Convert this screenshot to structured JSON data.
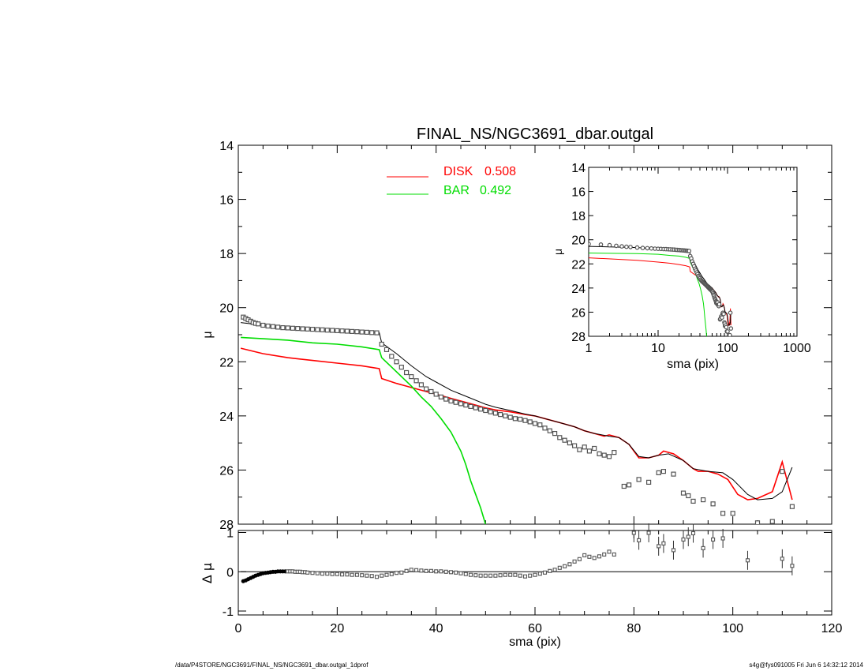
{
  "footer": {
    "path": "/data/P4STORE/NGC3691/FINAL_NS/NGC3691_dbar.outgal_1dprof",
    "stamp": "s4g@fys091005  Fri Jun  6 14:32:12 2014"
  },
  "colors": {
    "disk": "#ff0000",
    "bar": "#00dd00",
    "data": "#555555",
    "model": "#000000"
  },
  "chart_data": [
    {
      "type": "line",
      "title": "FINAL_NS/NGC3691_dbar.outgal",
      "xlabel": "sma (pix)",
      "ylabel": "μ",
      "xlim": [
        0,
        120
      ],
      "ylim": [
        14,
        28
      ],
      "y_inverted": true,
      "xticks": [
        0,
        20,
        40,
        60,
        80,
        100,
        120
      ],
      "yticks": [
        14,
        16,
        18,
        20,
        22,
        24,
        26,
        28
      ],
      "legend": [
        {
          "label": "DISK",
          "value": "0.508",
          "color": "#ff0000"
        },
        {
          "label": "BAR",
          "value": "0.492",
          "color": "#00dd00"
        }
      ],
      "series": [
        {
          "name": "DISK",
          "color": "#ff0000",
          "x": [
            0.5,
            5,
            10,
            15,
            20,
            25,
            28.5,
            29,
            32,
            35,
            38,
            40,
            43,
            45,
            48,
            50,
            52,
            55,
            58,
            60,
            62,
            65,
            68,
            70,
            72,
            74,
            75,
            77,
            79,
            81,
            83,
            85,
            86,
            88,
            90,
            92,
            93,
            95,
            97,
            99,
            101,
            103,
            105,
            108,
            110,
            112
          ],
          "y": [
            21.5,
            21.7,
            21.85,
            21.95,
            22.05,
            22.15,
            22.25,
            22.62,
            22.8,
            22.95,
            23.1,
            23.2,
            23.35,
            23.45,
            23.6,
            23.7,
            23.78,
            23.85,
            23.95,
            24.0,
            24.1,
            24.25,
            24.4,
            24.55,
            24.65,
            24.75,
            24.7,
            24.8,
            25.05,
            25.55,
            25.55,
            25.45,
            25.3,
            25.4,
            25.65,
            25.95,
            26.05,
            26.05,
            26.15,
            26.35,
            26.9,
            27.1,
            27.05,
            26.8,
            25.7,
            27.1
          ]
        },
        {
          "name": "BAR",
          "color": "#00dd00",
          "x": [
            0.5,
            5,
            10,
            15,
            20,
            25,
            28.5,
            29,
            31,
            33,
            35,
            37,
            39,
            41,
            43,
            45,
            46,
            47,
            48,
            49,
            50
          ],
          "y": [
            21.1,
            21.15,
            21.2,
            21.3,
            21.35,
            21.45,
            21.55,
            21.85,
            22.2,
            22.55,
            22.9,
            23.3,
            23.65,
            24.1,
            24.6,
            25.3,
            25.8,
            26.4,
            26.9,
            27.4,
            28.0
          ]
        },
        {
          "name": "model",
          "color": "#000000",
          "x": [
            0.5,
            5,
            10,
            15,
            20,
            25,
            28.5,
            29,
            32,
            35,
            38,
            40,
            43,
            45,
            48,
            50,
            52,
            55,
            58,
            60,
            62,
            65,
            68,
            70,
            72,
            75,
            77,
            79,
            81,
            83,
            85,
            87,
            90,
            92,
            95,
            98,
            100,
            103,
            105,
            108,
            110,
            112
          ],
          "y": [
            20.55,
            20.65,
            20.75,
            20.8,
            20.85,
            20.9,
            20.92,
            21.3,
            21.7,
            22.15,
            22.55,
            22.75,
            23.05,
            23.2,
            23.42,
            23.57,
            23.68,
            23.8,
            23.93,
            24.0,
            24.1,
            24.25,
            24.4,
            24.55,
            24.65,
            24.75,
            24.8,
            25.05,
            25.5,
            25.55,
            25.45,
            25.4,
            25.65,
            25.95,
            26.05,
            26.1,
            26.35,
            26.9,
            27.1,
            27.05,
            26.8,
            25.9
          ]
        }
      ],
      "data_points": {
        "x": [
          1,
          1.5,
          2,
          2.5,
          3,
          3.5,
          4,
          5,
          6,
          7,
          8,
          9,
          10,
          11,
          12,
          13,
          14,
          15,
          16,
          17,
          18,
          19,
          20,
          21,
          22,
          23,
          24,
          25,
          26,
          27,
          28,
          29,
          30,
          31,
          32,
          33,
          34,
          35,
          36,
          37,
          38,
          39,
          40,
          41,
          42,
          43,
          44,
          45,
          46,
          47,
          48,
          49,
          50,
          51,
          52,
          53,
          54,
          55,
          56,
          57,
          58,
          59,
          60,
          61,
          62,
          63,
          64,
          65,
          66,
          67,
          68,
          69,
          70,
          71,
          72,
          73,
          74,
          75,
          76,
          78,
          79,
          81,
          83,
          85,
          86,
          88,
          90,
          91,
          92,
          94,
          96,
          98,
          100,
          103,
          105,
          108,
          110,
          112
        ],
        "y": [
          20.35,
          20.4,
          20.45,
          20.5,
          20.55,
          20.58,
          20.6,
          20.65,
          20.68,
          20.7,
          20.72,
          20.74,
          20.75,
          20.76,
          20.77,
          20.78,
          20.79,
          20.8,
          20.81,
          20.82,
          20.83,
          20.84,
          20.85,
          20.86,
          20.87,
          20.88,
          20.89,
          20.9,
          20.91,
          20.92,
          20.93,
          21.35,
          21.55,
          21.8,
          22.0,
          22.2,
          22.4,
          22.55,
          22.7,
          22.85,
          23.0,
          23.1,
          23.2,
          23.3,
          23.38,
          23.45,
          23.5,
          23.55,
          23.6,
          23.65,
          23.7,
          23.75,
          23.8,
          23.85,
          23.9,
          23.95,
          24.0,
          24.05,
          24.1,
          24.12,
          24.17,
          24.22,
          24.28,
          24.33,
          24.45,
          24.55,
          24.65,
          24.8,
          24.9,
          25.0,
          25.1,
          25.25,
          25.15,
          25.3,
          25.2,
          25.4,
          25.45,
          25.5,
          25.35,
          26.6,
          26.55,
          26.35,
          26.45,
          26.1,
          26.05,
          26.15,
          26.85,
          26.95,
          27.15,
          27.1,
          27.25,
          27.6,
          27.6,
          28.05,
          27.95,
          27.9,
          26.05,
          27.35
        ]
      },
      "inset": {
        "xlabel": "sma (pix)",
        "ylabel": "μ",
        "xscale": "log",
        "xlim": [
          1,
          1000
        ],
        "ylim": [
          14,
          28
        ],
        "y_inverted": true,
        "xticks": [
          1,
          10,
          100,
          1000
        ],
        "yticks": [
          14,
          16,
          18,
          20,
          22,
          24,
          26,
          28
        ]
      }
    },
    {
      "type": "scatter",
      "xlabel": "sma (pix)",
      "ylabel": "Δ μ",
      "xlim": [
        0,
        120
      ],
      "ylim": [
        -1.1,
        1.05
      ],
      "xticks": [
        0,
        20,
        40,
        60,
        80,
        100,
        120
      ],
      "yticks": [
        -1,
        0,
        1
      ],
      "series": [
        {
          "name": "residual",
          "x": [
            1,
            1.5,
            2,
            2.5,
            3,
            3.5,
            4,
            4.5,
            5,
            5.5,
            6,
            6.5,
            7,
            7.5,
            8,
            8.5,
            9,
            9.5,
            10,
            10.5,
            11,
            11.5,
            12,
            12.5,
            13,
            13.5,
            14,
            15,
            16,
            17,
            18,
            19,
            20,
            21,
            22,
            23,
            24,
            25,
            26,
            27,
            28,
            29,
            30,
            31,
            32,
            33,
            34,
            35,
            36,
            37,
            38,
            39,
            40,
            41,
            42,
            43,
            44,
            45,
            46,
            47,
            48,
            49,
            50,
            51,
            52,
            53,
            54,
            55,
            56,
            57,
            58,
            59,
            60,
            61,
            62,
            63,
            64,
            65,
            66,
            67,
            68,
            69,
            70,
            71,
            72,
            73,
            74,
            75,
            76,
            80,
            81,
            83,
            85,
            86,
            88,
            90,
            91,
            92,
            94,
            96,
            98,
            103,
            110,
            112
          ],
          "y": [
            -0.24,
            -0.22,
            -0.19,
            -0.16,
            -0.13,
            -0.1,
            -0.08,
            -0.06,
            -0.04,
            -0.03,
            -0.02,
            -0.01,
            0.0,
            0.0,
            0.01,
            0.01,
            0.01,
            0.01,
            0.01,
            0.01,
            0.01,
            0.0,
            0.0,
            0.0,
            -0.01,
            -0.01,
            -0.02,
            -0.03,
            -0.04,
            -0.05,
            -0.05,
            -0.06,
            -0.06,
            -0.07,
            -0.07,
            -0.08,
            -0.08,
            -0.09,
            -0.1,
            -0.11,
            -0.13,
            -0.1,
            -0.08,
            -0.06,
            -0.03,
            -0.02,
            0.02,
            0.05,
            0.04,
            0.03,
            0.02,
            0.02,
            0.01,
            0.01,
            0.0,
            -0.01,
            -0.02,
            -0.04,
            -0.06,
            -0.08,
            -0.09,
            -0.1,
            -0.1,
            -0.1,
            -0.1,
            -0.09,
            -0.08,
            -0.08,
            -0.08,
            -0.1,
            -0.12,
            -0.1,
            -0.08,
            -0.05,
            -0.02,
            0.02,
            0.05,
            0.1,
            0.14,
            0.19,
            0.26,
            0.32,
            0.42,
            0.38,
            0.35,
            0.39,
            0.44,
            0.51,
            0.44,
            0.99,
            0.8,
            0.99,
            0.65,
            0.72,
            0.55,
            0.82,
            0.89,
            0.98,
            0.6,
            0.82,
            0.85,
            0.29,
            0.33,
            0.15
          ]
        }
      ]
    }
  ]
}
